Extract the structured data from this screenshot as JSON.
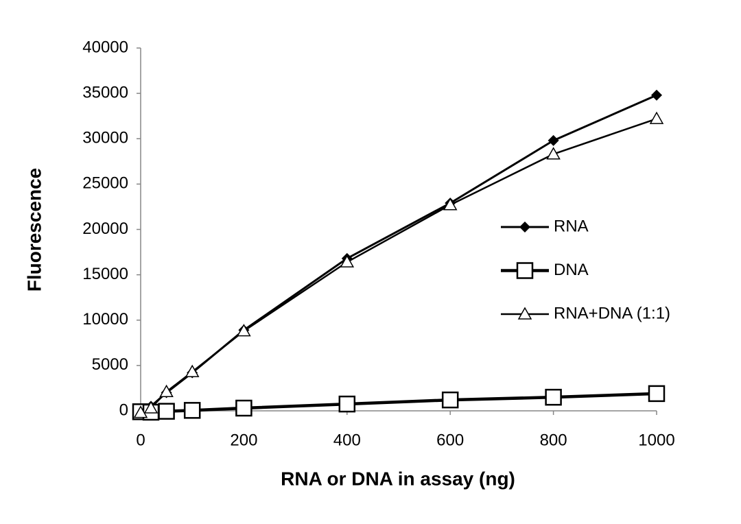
{
  "chart_data": {
    "type": "line",
    "x_label": "RNA or DNA in assay (ng)",
    "y_label": "Fluorescence",
    "x": [
      0,
      20,
      50,
      100,
      200,
      400,
      600,
      800,
      1000
    ],
    "series": [
      {
        "name": "RNA",
        "color": "#000000",
        "marker": "diamond",
        "values": [
          0,
          500,
          2000,
          4200,
          8900,
          16800,
          22900,
          29800,
          34800
        ]
      },
      {
        "name": "DNA",
        "color": "#000000",
        "marker": "square",
        "values": [
          -100,
          -150,
          -50,
          50,
          300,
          750,
          1200,
          1500,
          1900
        ]
      },
      {
        "name": "RNA+DNA (1:1)",
        "color": "#000000",
        "marker": "triangle",
        "values": [
          -200,
          300,
          2100,
          4300,
          8800,
          16400,
          22700,
          28300,
          32200
        ]
      }
    ],
    "xlim": [
      0,
      1000
    ],
    "ylim": [
      0,
      40000
    ],
    "xticks": [
      0,
      200,
      400,
      600,
      800,
      1000
    ],
    "yticks": [
      0,
      5000,
      10000,
      15000,
      20000,
      25000,
      30000,
      35000,
      40000
    ],
    "grid": false,
    "legend": "right"
  }
}
